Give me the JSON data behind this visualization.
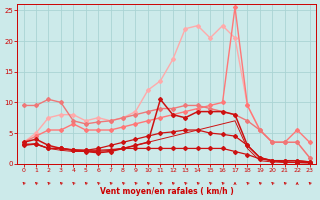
{
  "background_color": "#cceaea",
  "grid_color": "#aad4d4",
  "xlabel": "Vent moyen/en rafales ( km/h )",
  "xlabel_color": "#cc0000",
  "tick_color": "#cc0000",
  "xlim": [
    -0.5,
    23.5
  ],
  "ylim": [
    0,
    26
  ],
  "yticks": [
    0,
    5,
    10,
    15,
    20,
    25
  ],
  "xticks": [
    0,
    1,
    2,
    3,
    4,
    5,
    6,
    7,
    8,
    9,
    10,
    11,
    12,
    13,
    14,
    15,
    16,
    17,
    18,
    19,
    20,
    21,
    22,
    23
  ],
  "series": [
    {
      "y": [
        3.2,
        3.2,
        2.5,
        2.5,
        2.3,
        2.2,
        2.2,
        2.3,
        2.5,
        2.5,
        2.5,
        2.5,
        2.5,
        2.5,
        2.5,
        2.5,
        2.5,
        2.0,
        1.5,
        0.8,
        0.5,
        0.3,
        0.2,
        0.2
      ],
      "color": "#cc1111",
      "lw": 0.9,
      "marker": "D",
      "ms": 2.0,
      "zorder": 6
    },
    {
      "y": [
        3.0,
        3.2,
        2.5,
        2.5,
        2.2,
        2.2,
        2.5,
        3.0,
        3.5,
        4.0,
        4.5,
        5.0,
        5.2,
        5.5,
        5.5,
        5.0,
        4.8,
        4.5,
        3.0,
        1.0,
        0.5,
        0.5,
        0.5,
        0.3
      ],
      "color": "#cc1111",
      "lw": 0.9,
      "marker": "D",
      "ms": 2.0,
      "zorder": 6
    },
    {
      "y": [
        3.5,
        4.0,
        3.0,
        2.5,
        2.2,
        2.0,
        1.8,
        2.0,
        2.5,
        3.0,
        3.5,
        10.5,
        8.0,
        7.5,
        8.5,
        8.5,
        8.5,
        8.0,
        3.0,
        1.0,
        0.5,
        0.5,
        0.5,
        0.3
      ],
      "color": "#cc1111",
      "lw": 1.1,
      "marker": "D",
      "ms": 2.0,
      "zorder": 7
    },
    {
      "y": [
        3.0,
        3.3,
        2.5,
        2.2,
        2.0,
        2.0,
        2.0,
        2.2,
        2.5,
        3.0,
        3.5,
        4.0,
        4.5,
        5.0,
        5.5,
        6.0,
        6.5,
        7.0,
        2.5,
        0.5,
        0.3,
        0.2,
        0.2,
        0.1
      ],
      "color": "#cc1111",
      "lw": 0.7,
      "marker": null,
      "ms": 0,
      "zorder": 5
    },
    {
      "y": [
        9.5,
        9.5,
        10.5,
        10.0,
        7.0,
        6.5,
        6.8,
        7.0,
        7.5,
        8.0,
        8.5,
        9.0,
        9.0,
        9.5,
        9.5,
        9.0,
        8.5,
        8.0,
        7.0,
        5.5,
        3.5,
        3.5,
        3.5,
        1.0
      ],
      "color": "#ee7777",
      "lw": 1.0,
      "marker": "D",
      "ms": 2.0,
      "zorder": 4
    },
    {
      "y": [
        3.5,
        5.0,
        7.5,
        8.0,
        8.0,
        7.0,
        7.5,
        7.0,
        7.5,
        8.5,
        12.0,
        13.5,
        17.0,
        22.0,
        22.5,
        20.5,
        22.5,
        20.5,
        9.5,
        5.5,
        3.5,
        3.5,
        3.5,
        1.0
      ],
      "color": "#ffaaaa",
      "lw": 1.0,
      "marker": "D",
      "ms": 2.0,
      "zorder": 3
    },
    {
      "y": [
        3.5,
        4.5,
        5.5,
        5.5,
        6.5,
        5.5,
        5.5,
        5.5,
        6.0,
        6.5,
        7.0,
        7.5,
        8.0,
        8.5,
        9.0,
        9.5,
        10.0,
        25.5,
        9.5,
        5.5,
        3.5,
        3.5,
        5.5,
        3.5
      ],
      "color": "#ff7777",
      "lw": 1.0,
      "marker": "D",
      "ms": 2.0,
      "zorder": 3
    }
  ],
  "arrow_angles": [
    315,
    315,
    315,
    315,
    315,
    315,
    315,
    315,
    315,
    315,
    315,
    315,
    315,
    315,
    315,
    315,
    315,
    0,
    315,
    315,
    315,
    315,
    0,
    315
  ],
  "arrow_color": "#cc0000"
}
